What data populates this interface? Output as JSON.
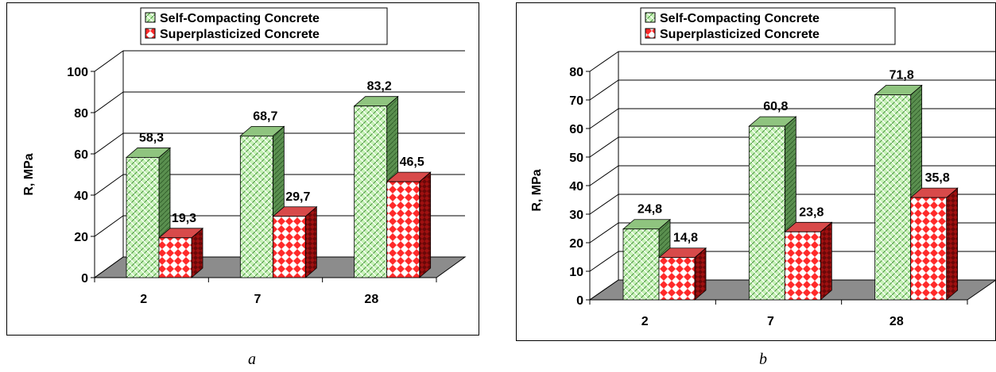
{
  "captions": [
    "a",
    "b"
  ],
  "colors": {
    "scc_front": "#c6f2b6",
    "scc_side": "#5a8f4f",
    "scc_top": "#8fc47f",
    "sp_front": "#ff2a2a",
    "sp_side": "#a01010",
    "sp_top": "#d84a4a",
    "floor": "#8c8c8c"
  },
  "chart_data": [
    {
      "type": "bar",
      "categories": [
        "2",
        "7",
        "28"
      ],
      "series": [
        {
          "name": "Self-Compacting Concrete",
          "values": [
            58.3,
            68.7,
            83.2
          ],
          "labels": [
            "58,3",
            "68,7",
            "83,2"
          ]
        },
        {
          "name": "Superplasticized Concrete",
          "values": [
            19.3,
            29.7,
            46.5
          ],
          "labels": [
            "19,3",
            "29,7",
            "46,5"
          ]
        }
      ],
      "ylabel": "R, MPa",
      "xlabel": "",
      "title": "",
      "ylim": [
        0,
        100
      ],
      "yticks": [
        "0",
        "20",
        "40",
        "60",
        "80",
        "100"
      ],
      "grid": true,
      "legend": "top-center"
    },
    {
      "type": "bar",
      "categories": [
        "2",
        "7",
        "28"
      ],
      "series": [
        {
          "name": "Self-Compacting Concrete",
          "values": [
            24.8,
            60.8,
            71.8
          ],
          "labels": [
            "24,8",
            "60,8",
            "71,8"
          ]
        },
        {
          "name": "Superplasticized Concrete",
          "values": [
            14.8,
            23.8,
            35.8
          ],
          "labels": [
            "14,8",
            "23,8",
            "35,8"
          ]
        }
      ],
      "ylabel": "R, MPa",
      "xlabel": "",
      "title": "",
      "ylim": [
        0,
        80
      ],
      "yticks": [
        "0",
        "10",
        "20",
        "30",
        "40",
        "50",
        "60",
        "70",
        "80"
      ],
      "grid": true,
      "legend": "top-center"
    }
  ]
}
